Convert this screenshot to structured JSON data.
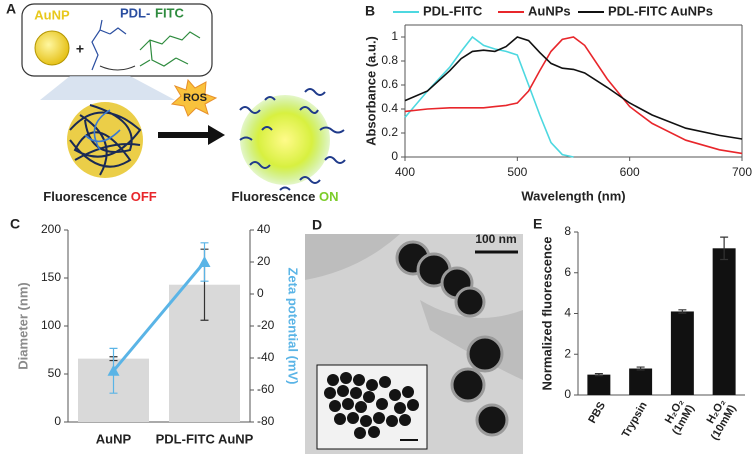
{
  "schematic": {
    "panel": "A",
    "nanoparticle": "AuNP",
    "plus": "+",
    "polymer": "PDL-",
    "dye": "FITC",
    "trigger": "ROS",
    "off_caption": "Fluorescence",
    "off_state": "OFF",
    "on_caption": "Fluorescence",
    "on_state": "ON"
  },
  "micrograph": {
    "panel": "D",
    "scale_bar": "100 nm"
  },
  "chart_data": [
    {
      "type": "line",
      "panel": "B",
      "xlabel": "Wavelength (nm)",
      "ylabel": "Absorbance (a.u.)",
      "x": [
        400,
        420,
        440,
        450,
        460,
        470,
        480,
        490,
        500,
        510,
        520,
        530,
        540,
        550,
        560,
        580,
        600,
        620,
        650,
        680,
        700
      ],
      "series": [
        {
          "name": "PDL-FITC",
          "color": "#4dd8e0",
          "values": [
            0.33,
            0.55,
            0.75,
            0.88,
            1.0,
            0.93,
            0.9,
            0.88,
            0.85,
            0.6,
            0.35,
            0.12,
            0.02,
            0,
            null,
            null,
            null,
            null,
            null,
            null,
            null
          ]
        },
        {
          "name": "AuNPs",
          "color": "#e8262b",
          "values": [
            0.38,
            0.4,
            0.41,
            0.41,
            0.41,
            0.41,
            0.42,
            0.43,
            0.45,
            0.55,
            0.72,
            0.88,
            0.98,
            1.0,
            0.93,
            0.65,
            0.42,
            0.28,
            0.14,
            0.06,
            0.03
          ]
        },
        {
          "name": "PDL-FITC AuNPs",
          "color": "#111111",
          "values": [
            0.47,
            0.55,
            0.72,
            0.82,
            0.88,
            0.89,
            0.88,
            0.92,
            1.0,
            0.97,
            0.87,
            0.78,
            0.74,
            0.73,
            0.7,
            0.58,
            0.45,
            0.35,
            0.24,
            0.18,
            0.15
          ]
        }
      ],
      "xlim": [
        400,
        700
      ],
      "xticks": [
        400,
        500,
        600,
        700
      ],
      "ylim": [
        0,
        1.1
      ],
      "yticks": [
        0,
        0.2,
        0.4,
        0.6,
        0.8,
        1
      ]
    },
    {
      "type": "bar",
      "panel": "C",
      "ylabel": "Diameter (nm)",
      "y2label": "Zeta potential (mV)",
      "categories": [
        "AuNP",
        "PDL-FITC AuNP"
      ],
      "series": [
        {
          "type": "bar",
          "color": "#d9d9d9",
          "values": [
            66,
            143
          ],
          "errors": [
            2,
            37
          ]
        },
        {
          "type": "line",
          "axis": "y2",
          "color": "#5ab4e6",
          "values": [
            -48,
            20
          ],
          "errors": [
            14,
            12
          ]
        }
      ],
      "ylim": [
        0,
        200
      ],
      "yticks": [
        0,
        50,
        100,
        150,
        200
      ],
      "y2lim": [
        -80,
        40
      ],
      "y2ticks": [
        -80,
        -60,
        -40,
        -20,
        0,
        20,
        40
      ]
    },
    {
      "type": "bar",
      "panel": "E",
      "ylabel": "Normalized fluorescence",
      "categories": [
        "PBS",
        "Trypsin",
        "H₂O₂ (1mM)",
        "H₂O₂ (10mM)"
      ],
      "series": [
        {
          "type": "bar",
          "color": "#111111",
          "values": [
            1.0,
            1.3,
            4.1,
            7.2
          ],
          "errors": [
            0.05,
            0.07,
            0.08,
            0.55
          ]
        }
      ],
      "ylim": [
        0,
        8
      ],
      "yticks": [
        0,
        2,
        4,
        6,
        8
      ]
    }
  ]
}
